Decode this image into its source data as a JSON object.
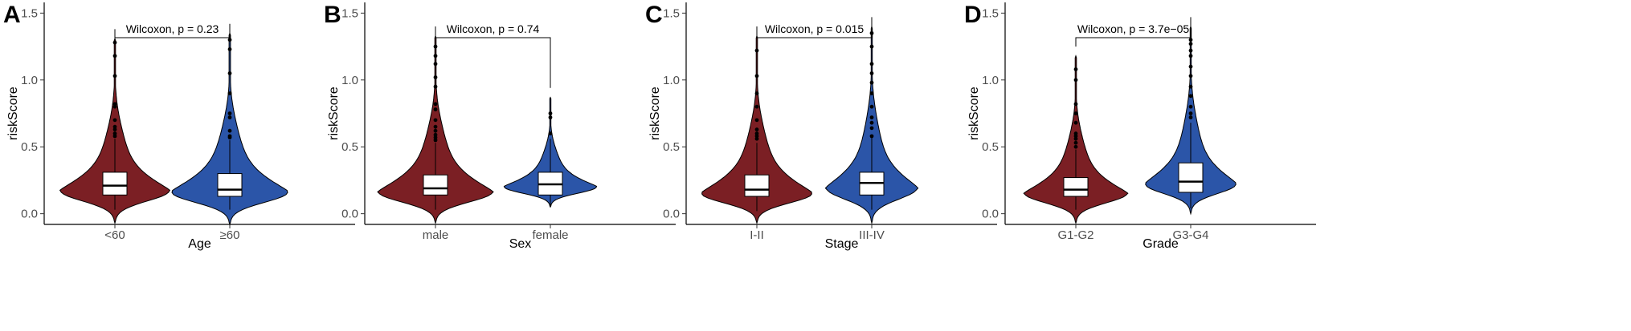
{
  "colors": {
    "low_group": "#7B1F24",
    "high_group": "#2B55A8",
    "box_fill": "#FFFFFF",
    "axis": "#000000"
  },
  "chart_data": [
    {
      "type": "violin",
      "panel": "A",
      "xlabel": "Age",
      "ylabel": "riskScore",
      "ylim": [
        -0.08,
        1.58
      ],
      "yticks": [
        "0.0",
        "0.5",
        "1.0",
        "1.5"
      ],
      "categories": [
        "<60",
        "≥60"
      ],
      "test_label": "Wilcoxon, p = 0.23",
      "groups": [
        {
          "name": "<60",
          "min": -0.07,
          "max": 1.31,
          "q1": 0.14,
          "median": 0.21,
          "q3": 0.31,
          "whisker_low": 0.03,
          "whisker_high": 0.56,
          "mode": 0.17,
          "width": 0.95,
          "outliers": [
            0.58,
            0.6,
            0.63,
            0.65,
            0.7,
            0.8,
            0.82,
            1.03,
            1.18,
            1.28
          ]
        },
        {
          "name": "≥60",
          "min": -0.08,
          "max": 1.35,
          "q1": 0.13,
          "median": 0.18,
          "q3": 0.3,
          "whisker_low": 0.03,
          "whisker_high": 0.55,
          "mode": 0.16,
          "width": 1.0,
          "outliers": [
            0.57,
            0.58,
            0.62,
            0.72,
            0.75,
            0.9,
            1.05,
            1.23,
            1.3
          ]
        }
      ]
    },
    {
      "type": "violin",
      "panel": "B",
      "xlabel": "Sex",
      "ylabel": "riskScore",
      "ylim": [
        -0.08,
        1.58
      ],
      "yticks": [
        "0.0",
        "0.5",
        "1.0",
        "1.5"
      ],
      "categories": [
        "male",
        "female"
      ],
      "test_label": "Wilcoxon, p = 0.74",
      "groups": [
        {
          "name": "male",
          "min": -0.07,
          "max": 1.33,
          "q1": 0.14,
          "median": 0.19,
          "q3": 0.29,
          "whisker_low": 0.03,
          "whisker_high": 0.53,
          "mode": 0.16,
          "width": 1.0,
          "outliers": [
            0.55,
            0.57,
            0.59,
            0.62,
            0.65,
            0.7,
            0.78,
            0.82,
            0.95,
            1.02,
            1.12,
            1.18,
            1.25
          ]
        },
        {
          "name": "female",
          "min": 0.05,
          "max": 0.87,
          "q1": 0.14,
          "median": 0.22,
          "q3": 0.31,
          "whisker_low": 0.05,
          "whisker_high": 0.56,
          "mode": 0.2,
          "width": 0.8,
          "outliers": [
            0.6,
            0.72,
            0.75
          ]
        }
      ]
    },
    {
      "type": "violin",
      "panel": "C",
      "xlabel": "Stage",
      "ylabel": "riskScore",
      "ylim": [
        -0.08,
        1.58
      ],
      "yticks": [
        "0.0",
        "0.5",
        "1.0",
        "1.5"
      ],
      "categories": [
        "I-II",
        "III-IV"
      ],
      "test_label": "Wilcoxon, p = 0.015",
      "groups": [
        {
          "name": "I-II",
          "min": -0.07,
          "max": 1.33,
          "q1": 0.13,
          "median": 0.18,
          "q3": 0.29,
          "whisker_low": 0.02,
          "whisker_high": 0.53,
          "mode": 0.15,
          "width": 0.95,
          "outliers": [
            0.56,
            0.58,
            0.6,
            0.63,
            0.7,
            0.8,
            0.9,
            1.03,
            1.22
          ]
        },
        {
          "name": "III-IV",
          "min": -0.07,
          "max": 1.4,
          "q1": 0.14,
          "median": 0.23,
          "q3": 0.31,
          "whisker_low": 0.03,
          "whisker_high": 0.57,
          "mode": 0.19,
          "width": 0.8,
          "outliers": [
            0.58,
            0.64,
            0.68,
            0.72,
            0.8,
            0.9,
            0.98,
            1.05,
            1.12,
            1.25,
            1.35
          ]
        }
      ]
    },
    {
      "type": "violin",
      "panel": "D",
      "xlabel": "Grade",
      "ylabel": "riskScore",
      "ylim": [
        -0.08,
        1.58
      ],
      "yticks": [
        "0.0",
        "0.5",
        "1.0",
        "1.5"
      ],
      "categories": [
        "G1-G2",
        "G3-G4"
      ],
      "test_label": "Wilcoxon, p = 3.7e−05",
      "groups": [
        {
          "name": "G1-G2",
          "min": -0.07,
          "max": 1.18,
          "q1": 0.13,
          "median": 0.18,
          "q3": 0.27,
          "whisker_low": 0.03,
          "whisker_high": 0.48,
          "mode": 0.15,
          "width": 0.9,
          "outliers": [
            0.5,
            0.53,
            0.56,
            0.58,
            0.6,
            0.68,
            0.75,
            0.82,
            1.0,
            1.08
          ]
        },
        {
          "name": "G3-G4",
          "min": 0.0,
          "max": 1.4,
          "q1": 0.16,
          "median": 0.24,
          "q3": 0.38,
          "whisker_low": 0.04,
          "whisker_high": 0.68,
          "mode": 0.22,
          "width": 0.78,
          "outliers": [
            0.72,
            0.75,
            0.8,
            0.88,
            0.95,
            1.03,
            1.1,
            1.18,
            1.22,
            1.27,
            1.3
          ]
        }
      ]
    }
  ]
}
